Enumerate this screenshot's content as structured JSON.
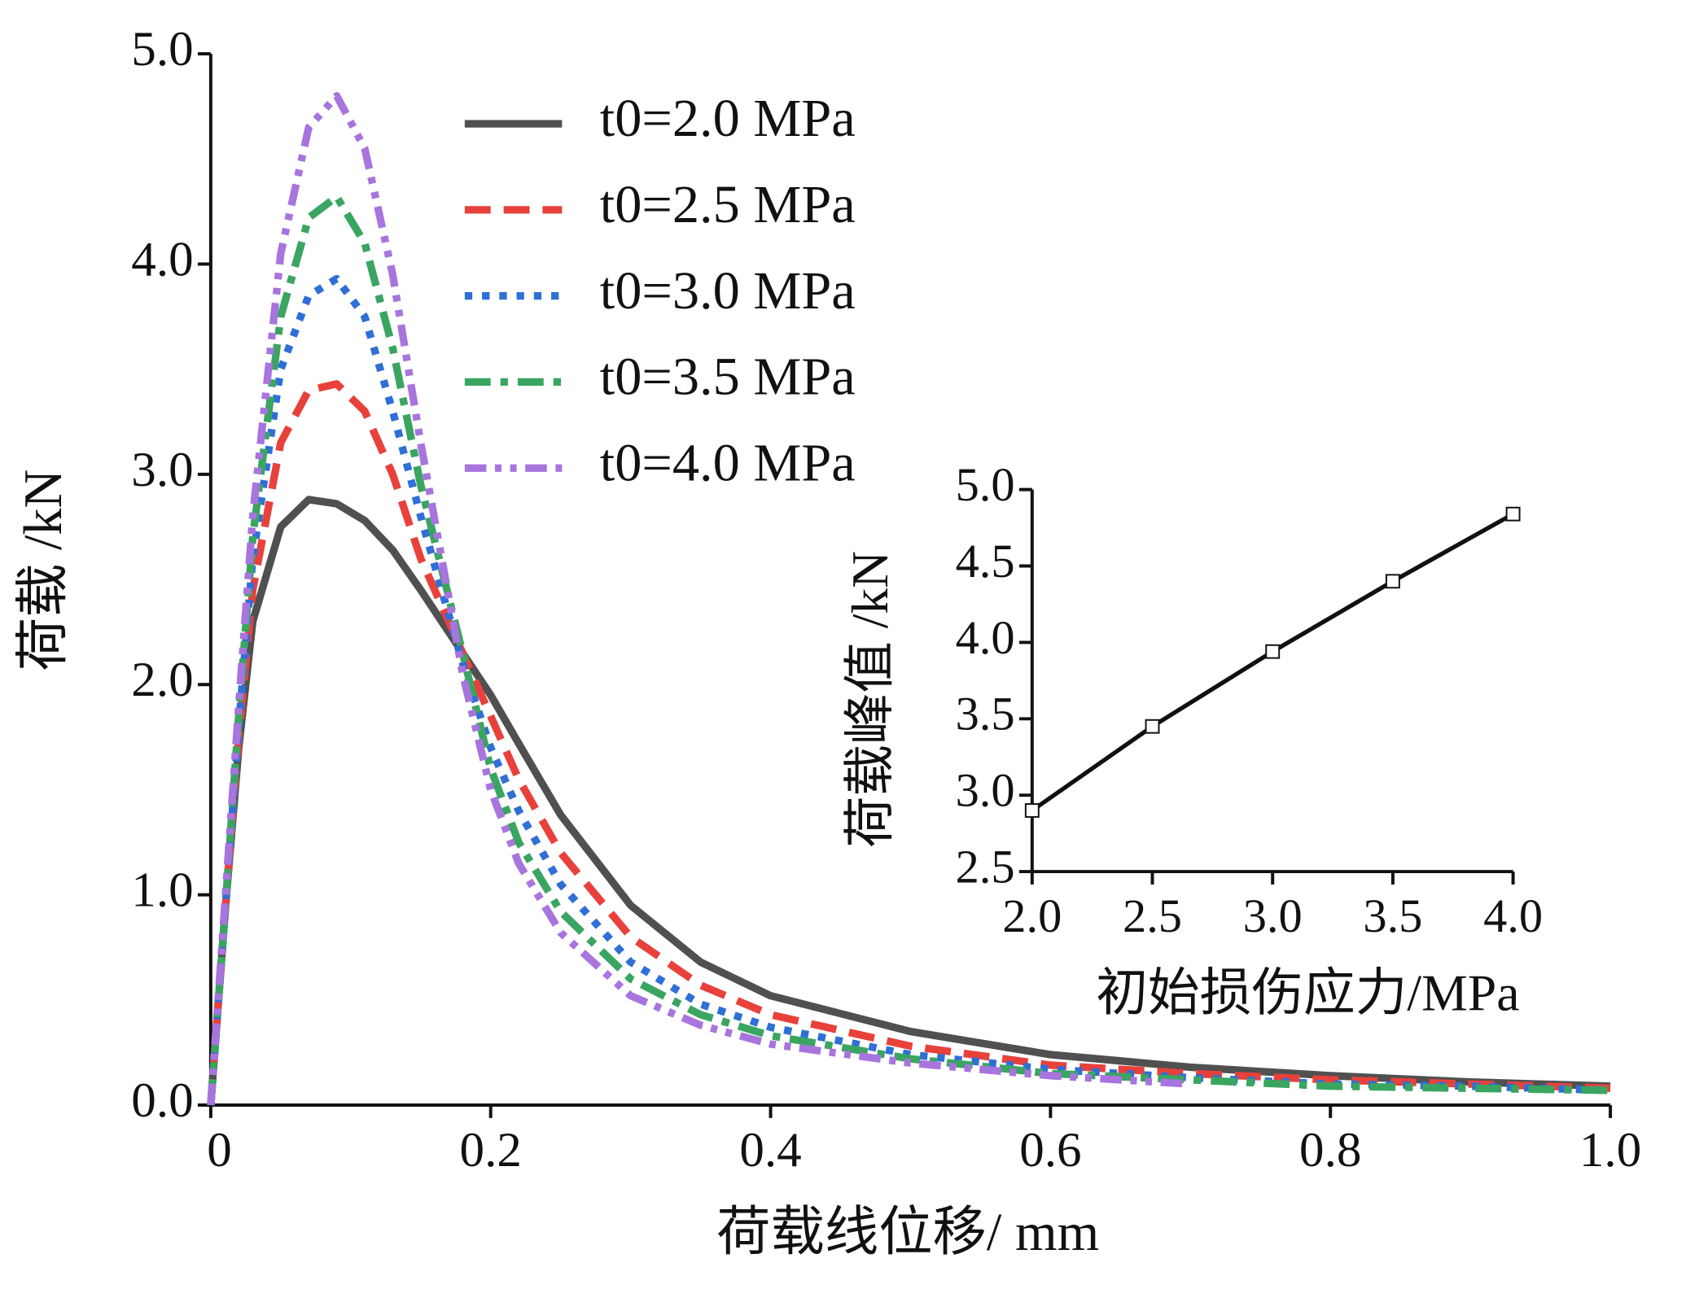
{
  "chart_data": [
    {
      "type": "line",
      "x_label": "荷载线位移/ mm",
      "y_label": "荷载 /kN",
      "x": [
        0,
        0.01,
        0.02,
        0.03,
        0.05,
        0.07,
        0.09,
        0.11,
        0.13,
        0.15,
        0.18,
        0.2,
        0.22,
        0.25,
        0.3,
        0.35,
        0.4,
        0.5,
        0.6,
        0.7,
        0.8,
        0.9,
        1.0
      ],
      "xlim": [
        0,
        1
      ],
      "xticks": [
        0,
        0.2,
        0.4,
        0.6,
        0.8,
        {
          "value": 1,
          "label": "1.0"
        }
      ],
      "ylim": [
        0,
        5
      ],
      "yticks": [
        {
          "value": 0,
          "label": "0.0"
        },
        {
          "value": 1,
          "label": "1.0"
        },
        {
          "value": 2,
          "label": "2.0"
        },
        {
          "value": 3,
          "label": "3.0"
        },
        {
          "value": 4,
          "label": "4.0"
        },
        {
          "value": 5,
          "label": "5.0"
        }
      ],
      "legend": "upper center",
      "series": [
        {
          "name": "t0=2.0 MPa",
          "color": "#505050",
          "line_style": "solid",
          "values": [
            0,
            0.9,
            1.7,
            2.3,
            2.75,
            2.88,
            2.86,
            2.78,
            2.64,
            2.45,
            2.15,
            1.95,
            1.72,
            1.38,
            0.95,
            0.68,
            0.52,
            0.35,
            0.24,
            0.18,
            0.14,
            0.11,
            0.09
          ]
        },
        {
          "name": "t0=2.5 MPa",
          "color": "#e8413c",
          "line_style": "dashed",
          "values": [
            0,
            0.9,
            1.75,
            2.45,
            3.15,
            3.4,
            3.43,
            3.3,
            3.0,
            2.6,
            2.15,
            1.85,
            1.55,
            1.2,
            0.8,
            0.57,
            0.43,
            0.28,
            0.19,
            0.15,
            0.12,
            0.1,
            0.08
          ]
        },
        {
          "name": "t0=3.0 MPa",
          "color": "#2f6fd6",
          "line_style": "dotted",
          "values": [
            0,
            0.9,
            1.8,
            2.6,
            3.5,
            3.85,
            3.93,
            3.75,
            3.3,
            2.8,
            2.1,
            1.7,
            1.4,
            1.05,
            0.68,
            0.48,
            0.37,
            0.24,
            0.17,
            0.13,
            0.1,
            0.09,
            0.07
          ]
        },
        {
          "name": "t0=3.5 MPa",
          "color": "#3aa561",
          "line_style": "dashdot",
          "values": [
            0,
            0.9,
            1.85,
            2.7,
            3.75,
            4.22,
            4.32,
            4.1,
            3.6,
            2.95,
            2.15,
            1.6,
            1.25,
            0.92,
            0.6,
            0.43,
            0.33,
            0.22,
            0.15,
            0.12,
            0.09,
            0.08,
            0.07
          ]
        },
        {
          "name": "t0=4.0 MPa",
          "color": "#a874de",
          "line_style": "dashdotdot",
          "values": [
            0,
            0.95,
            1.9,
            2.8,
            4.05,
            4.65,
            4.8,
            4.55,
            3.95,
            3.15,
            2.05,
            1.5,
            1.15,
            0.82,
            0.52,
            0.38,
            0.29,
            0.2,
            0.14,
            0.1,
            null,
            null,
            null
          ]
        }
      ]
    },
    {
      "type": "line",
      "x_label": "初始损伤应力/MPa",
      "y_label": "荷载峰值 /kN",
      "x": [
        2.0,
        2.5,
        3.0,
        3.5,
        4.0
      ],
      "xlim": [
        2,
        4
      ],
      "xticks": [
        {
          "value": 2,
          "label": "2.0"
        },
        2.5,
        {
          "value": 3,
          "label": "3.0"
        },
        3.5,
        {
          "value": 4,
          "label": "4.0"
        }
      ],
      "ylim": [
        2.5,
        5
      ],
      "yticks": [
        2.5,
        {
          "value": 3,
          "label": "3.0"
        },
        3.5,
        {
          "value": 4,
          "label": "4.0"
        },
        4.5,
        {
          "value": 5,
          "label": "5.0"
        }
      ],
      "markers": true,
      "series": [
        {
          "color": "#111111",
          "values": [
            2.9,
            3.45,
            3.94,
            4.4,
            4.84
          ]
        }
      ]
    }
  ]
}
